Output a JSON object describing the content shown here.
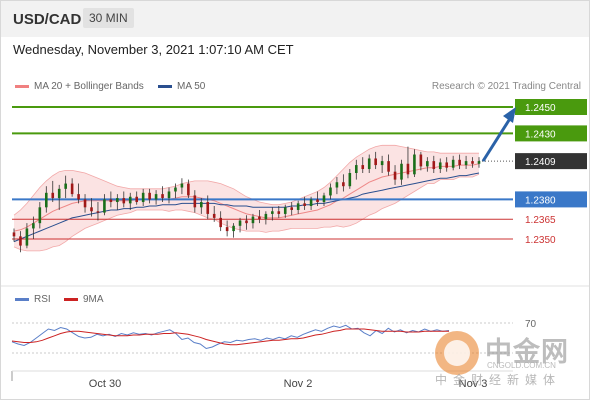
{
  "header": {
    "symbol": "USD/CAD",
    "timeframe": "30 MIN"
  },
  "date": "Wednesday, November 3, 2021 1:07:10 AM CET",
  "legend": {
    "bollinger": {
      "label": "MA 20 + Bollinger Bands",
      "color": "#f08080"
    },
    "ma50": {
      "label": "MA 50",
      "color": "#2a4f8f"
    }
  },
  "copyright": "Research © 2021 Trading Central",
  "colors": {
    "green": "#4a9a0e",
    "blue": "#3a78c8",
    "red": "#cc3333",
    "arrow": "#2a62a8",
    "current": "#333333"
  },
  "chart_data": [
    {
      "type": "candlestick",
      "levels": [
        {
          "value": 1.245,
          "label": "1.2450",
          "kind": "resistance"
        },
        {
          "value": 1.243,
          "label": "1.2430",
          "kind": "resistance"
        },
        {
          "value": 1.2409,
          "label": "1.2409",
          "kind": "current"
        },
        {
          "value": 1.238,
          "label": "1.2380",
          "kind": "pivot"
        },
        {
          "value": 1.2365,
          "label": "1.2365",
          "kind": "support"
        },
        {
          "value": 1.235,
          "label": "1.2350",
          "kind": "support"
        }
      ],
      "x_ticks": [
        "Oct 30",
        "Nov 2",
        "Nov 3"
      ],
      "candles": [
        [
          1.2355,
          1.2358,
          1.2348,
          1.2352
        ],
        [
          1.2352,
          1.2356,
          1.234,
          1.2345
        ],
        [
          1.2345,
          1.2362,
          1.2343,
          1.2358
        ],
        [
          1.2358,
          1.2367,
          1.235,
          1.2362
        ],
        [
          1.2362,
          1.2378,
          1.2358,
          1.2374
        ],
        [
          1.2374,
          1.239,
          1.237,
          1.2385
        ],
        [
          1.2385,
          1.2394,
          1.2378,
          1.2381
        ],
        [
          1.2381,
          1.2391,
          1.2372,
          1.2388
        ],
        [
          1.2388,
          1.2398,
          1.2381,
          1.2392
        ],
        [
          1.2392,
          1.2396,
          1.2382,
          1.2384
        ],
        [
          1.2384,
          1.2392,
          1.2377,
          1.238
        ],
        [
          1.238,
          1.2384,
          1.237,
          1.2374
        ],
        [
          1.2374,
          1.2381,
          1.2367,
          1.2371
        ],
        [
          1.2371,
          1.2378,
          1.2364,
          1.237
        ],
        [
          1.237,
          1.2384,
          1.2368,
          1.238
        ],
        [
          1.238,
          1.2386,
          1.2374,
          1.2378
        ],
        [
          1.2378,
          1.2384,
          1.2372,
          1.2381
        ],
        [
          1.2381,
          1.2386,
          1.2374,
          1.2377
        ],
        [
          1.2377,
          1.2385,
          1.2372,
          1.2382
        ],
        [
          1.2382,
          1.2386,
          1.2376,
          1.2378
        ],
        [
          1.2378,
          1.2388,
          1.2375,
          1.2385
        ],
        [
          1.2385,
          1.2388,
          1.2377,
          1.238
        ],
        [
          1.238,
          1.2387,
          1.2376,
          1.2384
        ],
        [
          1.2384,
          1.239,
          1.2378,
          1.2381
        ],
        [
          1.2381,
          1.2389,
          1.2377,
          1.2386
        ],
        [
          1.2386,
          1.2392,
          1.2381,
          1.2389
        ],
        [
          1.2389,
          1.2396,
          1.2384,
          1.2392
        ],
        [
          1.2392,
          1.2395,
          1.2381,
          1.2383
        ],
        [
          1.2383,
          1.2387,
          1.237,
          1.2374
        ],
        [
          1.2374,
          1.2381,
          1.2369,
          1.2378
        ],
        [
          1.2378,
          1.2383,
          1.2365,
          1.2369
        ],
        [
          1.2369,
          1.2375,
          1.2363,
          1.2366
        ],
        [
          1.2366,
          1.2371,
          1.2356,
          1.2359
        ],
        [
          1.2359,
          1.2364,
          1.2352,
          1.2356
        ],
        [
          1.2356,
          1.2362,
          1.2351,
          1.236
        ],
        [
          1.236,
          1.2366,
          1.2355,
          1.2364
        ],
        [
          1.2364,
          1.2368,
          1.2357,
          1.2362
        ],
        [
          1.2362,
          1.2369,
          1.2358,
          1.2367
        ],
        [
          1.2367,
          1.2372,
          1.2362,
          1.2365
        ],
        [
          1.2365,
          1.2371,
          1.2361,
          1.2369
        ],
        [
          1.2369,
          1.2374,
          1.2364,
          1.2371
        ],
        [
          1.2371,
          1.2375,
          1.2366,
          1.2369
        ],
        [
          1.2369,
          1.2376,
          1.2366,
          1.2374
        ],
        [
          1.2374,
          1.2378,
          1.2368,
          1.2372
        ],
        [
          1.2372,
          1.2379,
          1.2369,
          1.2377
        ],
        [
          1.2377,
          1.2382,
          1.2372,
          1.2375
        ],
        [
          1.2375,
          1.2382,
          1.2372,
          1.238
        ],
        [
          1.238,
          1.2386,
          1.2375,
          1.2378
        ],
        [
          1.2378,
          1.2385,
          1.2375,
          1.2383
        ],
        [
          1.2383,
          1.2392,
          1.238,
          1.2389
        ],
        [
          1.2389,
          1.2397,
          1.2384,
          1.2393
        ],
        [
          1.2393,
          1.2399,
          1.2386,
          1.239
        ],
        [
          1.239,
          1.2403,
          1.2388,
          1.24
        ],
        [
          1.24,
          1.241,
          1.2395,
          1.2406
        ],
        [
          1.2406,
          1.2412,
          1.24,
          1.2403
        ],
        [
          1.2403,
          1.2414,
          1.24,
          1.2411
        ],
        [
          1.2411,
          1.2416,
          1.2403,
          1.2406
        ],
        [
          1.2406,
          1.2413,
          1.24,
          1.2409
        ],
        [
          1.2409,
          1.2414,
          1.2398,
          1.2401
        ],
        [
          1.2401,
          1.2406,
          1.2391,
          1.2395
        ],
        [
          1.2395,
          1.241,
          1.2391,
          1.2407
        ],
        [
          1.2407,
          1.242,
          1.2396,
          1.2399
        ],
        [
          1.2399,
          1.2418,
          1.2397,
          1.2414
        ],
        [
          1.2414,
          1.2416,
          1.2402,
          1.2405
        ],
        [
          1.2405,
          1.2412,
          1.2401,
          1.2409
        ],
        [
          1.2409,
          1.2413,
          1.24,
          1.2403
        ],
        [
          1.2403,
          1.2411,
          1.24,
          1.2408
        ],
        [
          1.2408,
          1.2412,
          1.2401,
          1.2404
        ],
        [
          1.2404,
          1.2413,
          1.2402,
          1.241
        ],
        [
          1.241,
          1.2414,
          1.2403,
          1.2406
        ],
        [
          1.2406,
          1.2413,
          1.2403,
          1.2409
        ],
        [
          1.2409,
          1.2412,
          1.2404,
          1.2407
        ],
        [
          1.2407,
          1.2412,
          1.2404,
          1.2409
        ]
      ],
      "ma20": [
        1.2356,
        1.2357,
        1.2359,
        1.2362,
        1.2365,
        1.2368,
        1.2371,
        1.2373,
        1.2375,
        1.2377,
        1.2378,
        1.2379,
        1.2379,
        1.2379,
        1.2379,
        1.2379,
        1.2379,
        1.2379,
        1.2379,
        1.238,
        1.238,
        1.238,
        1.238,
        1.238,
        1.238,
        1.2381,
        1.2382,
        1.2382,
        1.2382,
        1.2381,
        1.238,
        1.2379,
        1.2377,
        1.2375,
        1.2373,
        1.2371,
        1.2369,
        1.2368,
        1.2367,
        1.2366,
        1.2366,
        1.2366,
        1.2367,
        1.2368,
        1.2369,
        1.237,
        1.2371,
        1.2372,
        1.2374,
        1.2376,
        1.2379,
        1.2381,
        1.2384,
        1.2387,
        1.239,
        1.2393,
        1.2395,
        1.2397,
        1.2398,
        1.2399,
        1.24,
        1.2401,
        1.2402,
        1.2403,
        1.2404,
        1.2404,
        1.2405,
        1.2405,
        1.2405,
        1.2406,
        1.2406,
        1.2406,
        1.2407
      ],
      "bb_upper": [
        1.2368,
        1.2372,
        1.2377,
        1.2383,
        1.2389,
        1.2394,
        1.2398,
        1.2401,
        1.2402,
        1.2402,
        1.2401,
        1.24,
        1.2398,
        1.2396,
        1.2394,
        1.2392,
        1.239,
        1.2389,
        1.2388,
        1.2388,
        1.2388,
        1.2388,
        1.2388,
        1.2388,
        1.2389,
        1.239,
        1.2392,
        1.2393,
        1.2394,
        1.2394,
        1.2394,
        1.2393,
        1.2392,
        1.239,
        1.2388,
        1.2385,
        1.2382,
        1.238,
        1.2378,
        1.2377,
        1.2376,
        1.2376,
        1.2377,
        1.2378,
        1.238,
        1.2382,
        1.2384,
        1.2386,
        1.2389,
        1.2393,
        1.2398,
        1.2403,
        1.2408,
        1.2412,
        1.2415,
        1.2418,
        1.242,
        1.2421,
        1.2421,
        1.2421,
        1.242,
        1.2419,
        1.2418,
        1.2417,
        1.2416,
        1.2416,
        1.2415,
        1.2415,
        1.2415,
        1.2415,
        1.2415,
        1.2415,
        1.2415
      ],
      "bb_lower": [
        1.2344,
        1.2342,
        1.2341,
        1.2341,
        1.2341,
        1.2342,
        1.2344,
        1.2345,
        1.2348,
        1.2352,
        1.2355,
        1.2358,
        1.236,
        1.2362,
        1.2364,
        1.2366,
        1.2368,
        1.2369,
        1.237,
        1.2372,
        1.2372,
        1.2372,
        1.2372,
        1.2372,
        1.2371,
        1.2372,
        1.2372,
        1.2371,
        1.237,
        1.2368,
        1.2366,
        1.2365,
        1.2362,
        1.236,
        1.2358,
        1.2357,
        1.2356,
        1.2356,
        1.2356,
        1.2355,
        1.2356,
        1.2356,
        1.2357,
        1.2358,
        1.2358,
        1.2358,
        1.2358,
        1.2358,
        1.2359,
        1.2359,
        1.236,
        1.2359,
        1.236,
        1.2362,
        1.2365,
        1.2368,
        1.237,
        1.2373,
        1.2375,
        1.2377,
        1.238,
        1.2383,
        1.2386,
        1.2389,
        1.2392,
        1.2392,
        1.2395,
        1.2395,
        1.2395,
        1.2397,
        1.2397,
        1.2397,
        1.2399
      ],
      "ma50": [
        1.2348,
        1.235,
        1.2352,
        1.2354,
        1.2356,
        1.2358,
        1.236,
        1.2362,
        1.2364,
        1.2366,
        1.2367,
        1.2368,
        1.2369,
        1.237,
        1.2371,
        1.2372,
        1.2372,
        1.2373,
        1.2373,
        1.2374,
        1.2374,
        1.2375,
        1.2375,
        1.2376,
        1.2376,
        1.2376,
        1.2377,
        1.2377,
        1.2377,
        1.2377,
        1.2377,
        1.2377,
        1.2376,
        1.2376,
        1.2375,
        1.2375,
        1.2375,
        1.2374,
        1.2374,
        1.2374,
        1.2374,
        1.2374,
        1.2374,
        1.2375,
        1.2375,
        1.2376,
        1.2376,
        1.2377,
        1.2377,
        1.2378,
        1.2379,
        1.238,
        1.2381,
        1.2382,
        1.2384,
        1.2385,
        1.2386,
        1.2387,
        1.2388,
        1.2389,
        1.239,
        1.2391,
        1.2392,
        1.2393,
        1.2394,
        1.2395,
        1.2396,
        1.2396,
        1.2397,
        1.2398,
        1.2398,
        1.2399,
        1.24
      ],
      "forecast_arrow": {
        "from": 1.2409,
        "to": 1.245
      }
    },
    {
      "type": "line",
      "legend": [
        {
          "label": "RSI",
          "color": "#5a7fc8"
        },
        {
          "label": "9MA",
          "color": "#cc2222"
        }
      ],
      "ylim": [
        20,
        80
      ],
      "y_ticks": [
        {
          "value": 70,
          "label": "70"
        }
      ],
      "rsi": [
        45,
        42,
        40,
        44,
        50,
        56,
        62,
        60,
        64,
        62,
        57,
        52,
        50,
        51,
        55,
        53,
        55,
        52,
        56,
        54,
        57,
        55,
        56,
        54,
        57,
        59,
        61,
        56,
        48,
        50,
        44,
        42,
        36,
        38,
        42,
        45,
        44,
        47,
        46,
        48,
        49,
        47,
        50,
        48,
        51,
        49,
        53,
        51,
        55,
        58,
        61,
        59,
        63,
        66,
        64,
        67,
        62,
        63,
        57,
        53,
        60,
        56,
        63,
        58,
        61,
        57,
        60,
        58,
        62,
        59,
        61,
        59,
        60
      ],
      "ma9": [
        46,
        45,
        44,
        44,
        45,
        47,
        50,
        53,
        56,
        58,
        59,
        59,
        58,
        57,
        56,
        55,
        54,
        53,
        53,
        53,
        54,
        54,
        55,
        55,
        55,
        56,
        56,
        57,
        56,
        55,
        53,
        51,
        48,
        46,
        44,
        42,
        41,
        41,
        42,
        43,
        44,
        45,
        46,
        47,
        47,
        48,
        49,
        49,
        50,
        52,
        54,
        55,
        57,
        59,
        60,
        62,
        62,
        62,
        62,
        61,
        60,
        59,
        59,
        59,
        59,
        58,
        58,
        58,
        59,
        59,
        59,
        59,
        59
      ]
    }
  ]
}
